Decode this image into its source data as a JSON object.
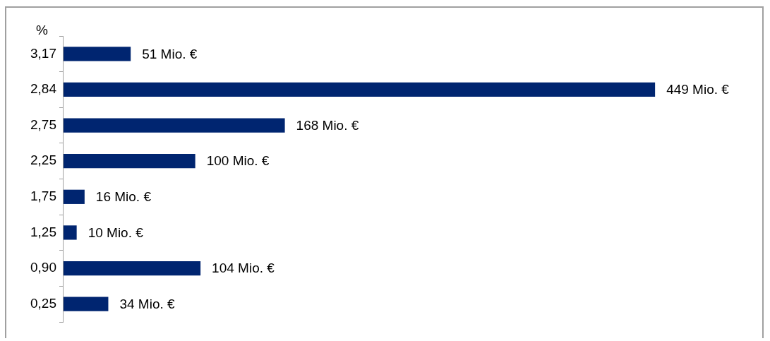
{
  "chart_data": {
    "type": "bar",
    "orientation": "horizontal",
    "ylabel": "%",
    "categories": [
      "3,17",
      "2,84",
      "2,75",
      "2,25",
      "1,75",
      "1,25",
      "0,90",
      "0,25"
    ],
    "series": [
      {
        "color": "#002570",
        "values": [
          51,
          449,
          168,
          100,
          16,
          10,
          104,
          34
        ],
        "value_labels": [
          "51 Mio. €",
          "449 Mio. €",
          "168 Mio. €",
          "100 Mio. €",
          "16 Mio. €",
          "10 Mio. €",
          "104 Mio. €",
          "34 Mio. €"
        ]
      }
    ],
    "grid": false,
    "legend": false
  }
}
